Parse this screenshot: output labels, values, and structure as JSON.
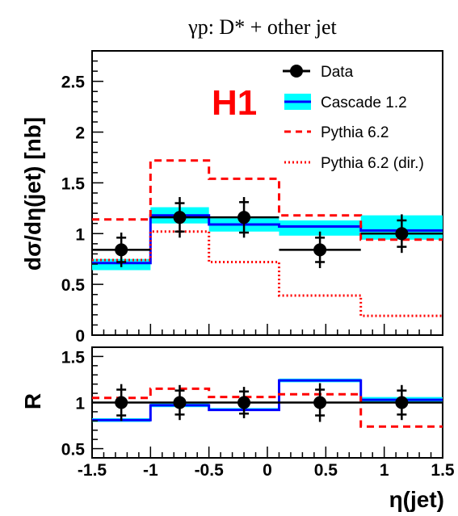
{
  "title": "γp:  D* + other jet",
  "logo_text": "H1",
  "colors": {
    "data": "#000000",
    "cascade_line": "#0000ff",
    "cascade_band": "#00ffff",
    "pythia": "#ff0000",
    "logo": "#ff0000"
  },
  "legend": {
    "data": "Data",
    "cascade": "Cascade 1.2",
    "pythia": "Pythia 6.2",
    "pythia_dir": "Pythia 6.2 (dir.)"
  },
  "axes": {
    "x_label": "η(jet)",
    "x_ticks": [
      "-1.5",
      "-1",
      "-0.5",
      "0",
      "0.5",
      "1",
      "1.5"
    ],
    "top_y_label": "dσ/dη(jet) [nb]",
    "top_y_ticks": [
      "0",
      "0.5",
      "1",
      "1.5",
      "2",
      "2.5"
    ],
    "bottom_y_label": "R",
    "bottom_y_ticks": [
      "0.5",
      "1",
      "1.5"
    ]
  },
  "chart_data": [
    {
      "type": "line",
      "panel": "top",
      "xlabel": "η(jet)",
      "ylabel": "dσ/dη(jet) [nb]",
      "xlim": [
        -1.5,
        1.5
      ],
      "ylim": [
        0,
        2.8
      ],
      "bin_edges": [
        -1.5,
        -1.0,
        -0.5,
        0.1,
        0.8,
        1.5
      ],
      "series": [
        {
          "name": "Data",
          "style": "points",
          "x": [
            -1.25,
            -0.75,
            -0.2,
            0.45,
            1.15
          ],
          "values": [
            0.84,
            1.16,
            1.16,
            0.84,
            1.0
          ],
          "err_stat": [
            0.12,
            0.14,
            0.15,
            0.12,
            0.13
          ],
          "err_tot": [
            0.17,
            0.2,
            0.2,
            0.18,
            0.19
          ]
        },
        {
          "name": "Cascade 1.2",
          "style": "step",
          "values": [
            0.71,
            1.18,
            1.09,
            1.07,
            1.03
          ],
          "band_low": [
            0.64,
            1.1,
            1.02,
            0.98,
            0.94
          ],
          "band_high": [
            0.75,
            1.26,
            1.15,
            1.13,
            1.18
          ]
        },
        {
          "name": "Pythia 6.2",
          "style": "step-dashed",
          "values": [
            1.14,
            1.72,
            1.54,
            1.18,
            0.94
          ]
        },
        {
          "name": "Pythia 6.2 (dir.)",
          "style": "step-dotted",
          "values": [
            0.74,
            1.02,
            0.72,
            0.39,
            0.19
          ]
        }
      ]
    },
    {
      "type": "line",
      "panel": "bottom",
      "xlabel": "η(jet)",
      "ylabel": "R",
      "xlim": [
        -1.5,
        1.5
      ],
      "ylim": [
        0.4,
        1.6
      ],
      "bin_edges": [
        -1.5,
        -1.0,
        -0.5,
        0.1,
        0.8,
        1.5
      ],
      "reference_line": 1.0,
      "series": [
        {
          "name": "Data",
          "style": "points",
          "x": [
            -1.25,
            -0.75,
            -0.2,
            0.45,
            1.15
          ],
          "values": [
            1.0,
            1.0,
            1.0,
            1.0,
            1.0
          ],
          "err_stat": [
            0.14,
            0.13,
            0.12,
            0.14,
            0.13
          ],
          "err_tot": [
            0.2,
            0.19,
            0.17,
            0.21,
            0.19
          ]
        },
        {
          "name": "Cascade 1.2",
          "style": "step",
          "values": [
            0.81,
            0.97,
            0.92,
            1.24,
            1.03
          ],
          "band_low": [
            0.79,
            0.95,
            0.91,
            1.22,
            1.0
          ],
          "band_high": [
            0.83,
            0.99,
            0.94,
            1.26,
            1.06
          ]
        },
        {
          "name": "Pythia 6.2",
          "style": "step-dashed",
          "values": [
            1.05,
            1.15,
            1.06,
            1.09,
            0.74
          ]
        }
      ]
    }
  ]
}
